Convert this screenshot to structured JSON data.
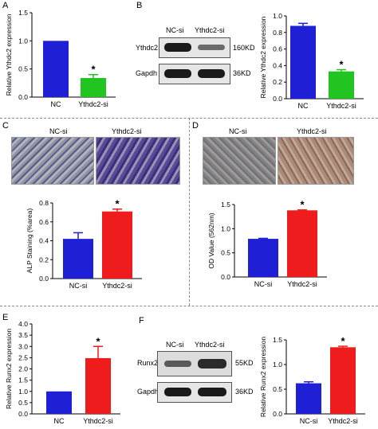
{
  "panels": {
    "A": "A",
    "B": "B",
    "C": "C",
    "D": "D",
    "E": "E",
    "F": "F"
  },
  "colors": {
    "blue": "#1f1fd6",
    "green": "#22c422",
    "red": "#ee1c1c"
  },
  "chart_data": [
    {
      "id": "A",
      "type": "bar",
      "categories": [
        "NC",
        "Ythdc2-si"
      ],
      "values": [
        1.0,
        0.34
      ],
      "errors": [
        0,
        0.06
      ],
      "colors": [
        "blue",
        "green"
      ],
      "ylabel": "Relative Ythdc2 expression",
      "ylim": [
        0,
        1.5
      ],
      "yticks": [
        "0.0",
        "0.5",
        "1.0",
        "1.5"
      ],
      "annotations": [
        "",
        "*"
      ]
    },
    {
      "id": "B",
      "type": "bar",
      "categories": [
        "NC",
        "Ythdc2-si"
      ],
      "values": [
        0.88,
        0.33
      ],
      "errors": [
        0.03,
        0.02
      ],
      "colors": [
        "blue",
        "green"
      ],
      "ylabel": "Relative Ythdc2 expression",
      "ylim": [
        0,
        1.0
      ],
      "yticks": [
        "0.0",
        "0.2",
        "0.4",
        "0.6",
        "0.8",
        "1.0"
      ],
      "annotations": [
        "",
        "*"
      ]
    },
    {
      "id": "C",
      "type": "bar",
      "categories": [
        "NC-si",
        "Ythdc2-si"
      ],
      "values": [
        0.42,
        0.71
      ],
      "errors": [
        0.065,
        0.025
      ],
      "colors": [
        "blue",
        "red"
      ],
      "ylabel": "ALP Staining (%area)",
      "ylim": [
        0,
        0.8
      ],
      "yticks": [
        "0.0",
        "0.2",
        "0.4",
        "0.6",
        "0.8"
      ],
      "annotations": [
        "",
        "*"
      ]
    },
    {
      "id": "D",
      "type": "bar",
      "categories": [
        "NC-si",
        "Ythdc2-si"
      ],
      "values": [
        0.79,
        1.38
      ],
      "errors": [
        0.01,
        0.01
      ],
      "colors": [
        "blue",
        "red"
      ],
      "ylabel": "OD Value (562nm)",
      "ylim": [
        0,
        1.5
      ],
      "yticks": [
        "0.0",
        "0.5",
        "1.0",
        "1.5"
      ],
      "annotations": [
        "",
        "*"
      ]
    },
    {
      "id": "E",
      "type": "bar",
      "categories": [
        "NC",
        "Ythdc2-si"
      ],
      "values": [
        1.0,
        2.48
      ],
      "errors": [
        0,
        0.52
      ],
      "colors": [
        "blue",
        "red"
      ],
      "ylabel": "Relative Runx2 expression",
      "ylim": [
        0,
        4.0
      ],
      "yticks": [
        "0.0",
        "0.5",
        "1.0",
        "1.5",
        "2.0",
        "2.5",
        "3.0",
        "3.5",
        "4.0"
      ],
      "annotations": [
        "",
        "*"
      ]
    },
    {
      "id": "F",
      "type": "bar",
      "categories": [
        "NC-si",
        "Ythdc2-si"
      ],
      "values": [
        0.62,
        1.35
      ],
      "errors": [
        0.03,
        0.02
      ],
      "colors": [
        "blue",
        "red"
      ],
      "ylabel": "Relative Runx2 expression",
      "ylim": [
        0,
        1.5
      ],
      "yticks": [
        "0.0",
        "0.5",
        "1.0",
        "1.5"
      ],
      "annotations": [
        "",
        "*"
      ]
    }
  ],
  "blots": {
    "B": {
      "lanes": [
        "NC-si",
        "Ythdc2-si"
      ],
      "rows": [
        {
          "protein": "Ythdc2",
          "size": "160KD"
        },
        {
          "protein": "Gapdh",
          "size": "36KD"
        }
      ]
    },
    "F": {
      "lanes": [
        "NC-si",
        "Ythdc2-si"
      ],
      "rows": [
        {
          "protein": "Runx2",
          "size": "55KD"
        },
        {
          "protein": "Gapdh",
          "size": "36KD"
        }
      ]
    }
  },
  "micrographs": {
    "C": {
      "labels": [
        "NC-si",
        "Ythdc2-si"
      ]
    },
    "D": {
      "labels": [
        "NC-si",
        "Ythdc2-si"
      ]
    }
  }
}
